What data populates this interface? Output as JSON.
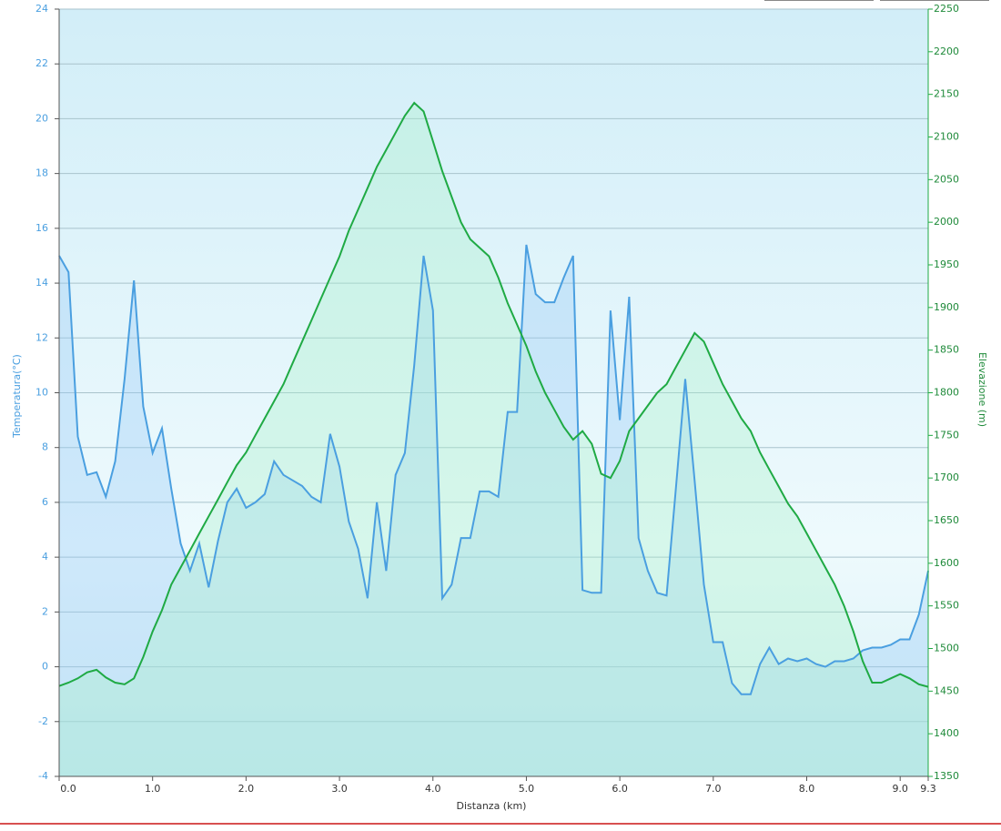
{
  "chart_data": {
    "type": "line",
    "xlabel": "Distanza  (km)",
    "ylabel": "Temperatura(°C)",
    "y2label": "Elevazione (m)",
    "x": [
      0,
      0.1,
      0.2,
      0.3,
      0.4,
      0.5,
      0.6,
      0.7,
      0.8,
      0.9,
      1,
      1.1,
      1.2,
      1.3,
      1.4,
      1.5,
      1.6,
      1.7,
      1.8,
      1.9,
      2,
      2.1,
      2.2,
      2.3,
      2.4,
      2.5,
      2.6,
      2.7,
      2.8,
      2.9,
      3,
      3.1,
      3.2,
      3.3,
      3.4,
      3.5,
      3.6,
      3.7,
      3.8,
      3.9,
      4,
      4.1,
      4.2,
      4.3,
      4.4,
      4.5,
      4.6,
      4.7,
      4.8,
      4.9,
      5,
      5.1,
      5.2,
      5.3,
      5.4,
      5.5,
      5.6,
      5.7,
      5.8,
      5.9,
      6,
      6.1,
      6.2,
      6.3,
      6.4,
      6.5,
      6.6,
      6.7,
      6.8,
      6.9,
      7,
      7.1,
      7.2,
      7.3,
      7.4,
      7.5,
      7.6,
      7.7,
      7.8,
      7.9,
      8,
      8.1,
      8.2,
      8.3,
      8.4,
      8.5,
      8.6,
      8.7,
      8.8,
      8.9,
      9,
      9.1,
      9.2,
      9.3
    ],
    "series": [
      {
        "color": "#4a9fe0",
        "axis": "y",
        "values": [
          15,
          14.4,
          8.4,
          7,
          7.1,
          6.2,
          7.5,
          10.5,
          14.1,
          9.5,
          7.8,
          8.7,
          6.5,
          4.5,
          3.5,
          4.5,
          2.9,
          4.6,
          6,
          6.5,
          5.8,
          6,
          6.3,
          7.5,
          7,
          6.8,
          6.6,
          6.2,
          6,
          8.5,
          7.3,
          5.3,
          4.3,
          2.5,
          6,
          3.5,
          7,
          7.8,
          11,
          15,
          13,
          2.5,
          3,
          4.7,
          4.7,
          6.4,
          6.4,
          6.2,
          9.3,
          9.3,
          15.4,
          13.6,
          13.3,
          13.3,
          14.2,
          15,
          2.8,
          2.7,
          2.7,
          13,
          9,
          13.5,
          4.7,
          3.5,
          2.7,
          2.6,
          6.5,
          10.5,
          6.8,
          3,
          0.9,
          0.9,
          -0.6,
          -1,
          -1,
          0.1,
          0.7,
          0.1,
          0.3,
          0.2,
          0.3,
          0.1,
          0,
          0.2,
          0.2,
          0.3,
          0.6,
          0.7,
          0.7,
          0.8,
          1,
          1,
          1.9,
          3.5
        ]
      },
      {
        "color": "#1faa44",
        "axis": "y2",
        "values": [
          1456,
          1460,
          1465,
          1472,
          1475,
          1466,
          1460,
          1458,
          1465,
          1490,
          1520,
          1545,
          1575,
          1595,
          1615,
          1635,
          1655,
          1675,
          1695,
          1715,
          1730,
          1750,
          1770,
          1790,
          1810,
          1835,
          1860,
          1885,
          1910,
          1935,
          1960,
          1990,
          2015,
          2040,
          2065,
          2085,
          2105,
          2125,
          2140,
          2130,
          2095,
          2060,
          2030,
          2000,
          1980,
          1970,
          1960,
          1935,
          1905,
          1880,
          1855,
          1825,
          1800,
          1780,
          1760,
          1745,
          1755,
          1740,
          1705,
          1700,
          1720,
          1755,
          1770,
          1785,
          1800,
          1810,
          1830,
          1850,
          1870,
          1860,
          1835,
          1810,
          1790,
          1770,
          1755,
          1730,
          1710,
          1690,
          1670,
          1655,
          1635,
          1615,
          1595,
          1575,
          1550,
          1520,
          1485,
          1460,
          1460,
          1465,
          1470,
          1465,
          1458,
          1455
        ]
      }
    ],
    "xlim": [
      0,
      9.3
    ],
    "xticks": [
      {
        "value": 0,
        "label": "0.0"
      },
      {
        "value": 1,
        "label": "1.0"
      },
      {
        "value": 2,
        "label": "2.0"
      },
      {
        "value": 3,
        "label": "3.0"
      },
      {
        "value": 4,
        "label": "4.0"
      },
      {
        "value": 5,
        "label": "5.0"
      },
      {
        "value": 6,
        "label": "6.0"
      },
      {
        "value": 7,
        "label": "7.0"
      },
      {
        "value": 8,
        "label": "8.0"
      },
      {
        "value": 9,
        "label": "9.0"
      },
      9.3
    ],
    "ylim": [
      -4,
      24
    ],
    "yticks": [
      -4,
      -2,
      0,
      2,
      4,
      6,
      8,
      10,
      12,
      14,
      16,
      18,
      20,
      22,
      24
    ],
    "y2lim": [
      1350,
      2250
    ],
    "y2ticks": [
      1350,
      1400,
      1450,
      1500,
      1550,
      1600,
      1650,
      1700,
      1750,
      1800,
      1850,
      1900,
      1950,
      2000,
      2050,
      2100,
      2150,
      2200,
      2250
    ],
    "grid": true
  }
}
